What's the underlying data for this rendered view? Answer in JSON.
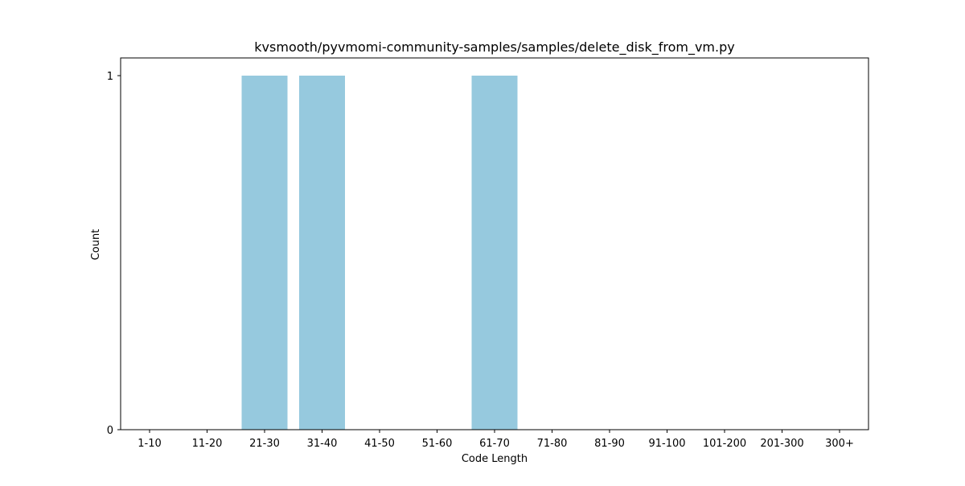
{
  "chart_data": {
    "type": "bar",
    "title": "kvsmooth/pyvmomi-community-samples/samples/delete_disk_from_vm.py",
    "xlabel": "Code Length",
    "ylabel": "Count",
    "categories": [
      "1-10",
      "11-20",
      "21-30",
      "31-40",
      "41-50",
      "51-60",
      "61-70",
      "71-80",
      "81-90",
      "91-100",
      "101-200",
      "201-300",
      "300+"
    ],
    "values": [
      0,
      0,
      1,
      1,
      0,
      0,
      1,
      0,
      0,
      0,
      0,
      0,
      0
    ],
    "ylim": [
      0,
      1.05
    ],
    "yticks": [
      0,
      1
    ],
    "bar_color": "#96c9de",
    "grid": false,
    "legend": "none"
  }
}
